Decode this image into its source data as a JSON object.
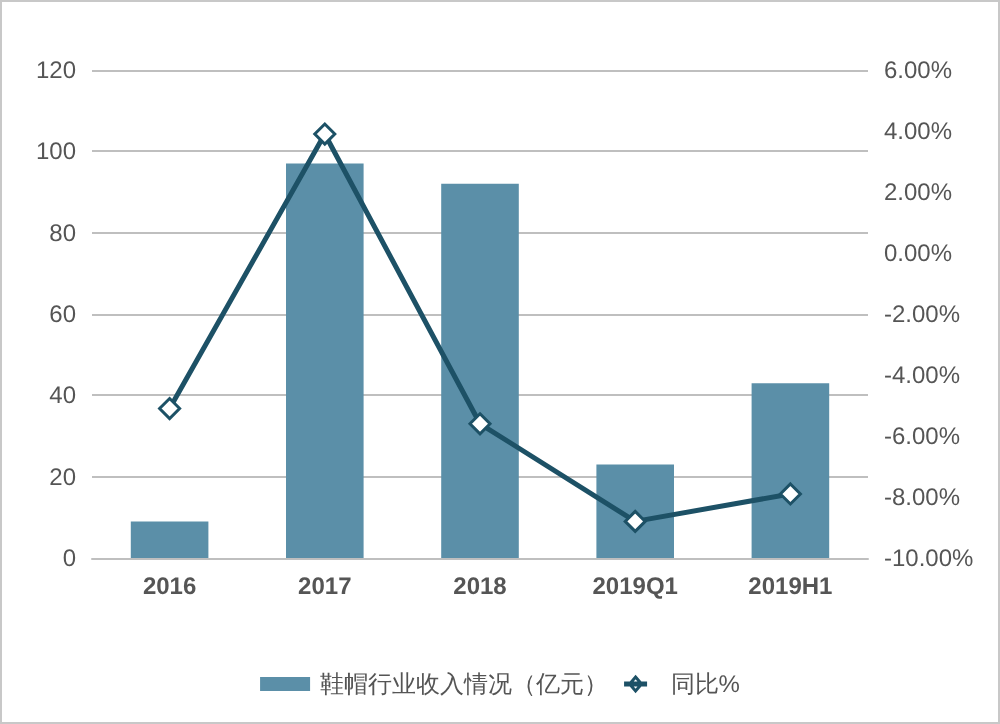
{
  "chart_data": {
    "type": "bar",
    "categories": [
      "2016",
      "2017",
      "2018",
      "2019Q1",
      "2019H1"
    ],
    "series": [
      {
        "name": "鞋帽行业收入情况（亿元）",
        "color": "#5b8fa8",
        "values": [
          9,
          97,
          92,
          23,
          43
        ]
      },
      {
        "name": "同比%",
        "type": "line",
        "axis": "y2",
        "color": "#1d5166",
        "marker": "diamond",
        "values": [
          -5.1,
          3.9,
          -5.6,
          -8.8,
          -7.9
        ]
      }
    ],
    "ylim": [
      0,
      120
    ],
    "yticks": [
      0,
      20,
      40,
      60,
      80,
      100,
      120
    ],
    "y2lim": [
      -10,
      6
    ],
    "y2ticks": [
      {
        "value": -10,
        "label": "-10.00%"
      },
      {
        "value": -8,
        "label": "-8.00%"
      },
      {
        "value": -6,
        "label": "-6.00%"
      },
      {
        "value": -4,
        "label": "-4.00%"
      },
      {
        "value": -2,
        "label": "-2.00%"
      },
      {
        "value": 0,
        "label": "0.00%"
      },
      {
        "value": 2,
        "label": "2.00%"
      },
      {
        "value": 4,
        "label": "4.00%"
      },
      {
        "value": 6,
        "label": "6.00%"
      }
    ],
    "grid": "y",
    "legend": "bottom"
  }
}
